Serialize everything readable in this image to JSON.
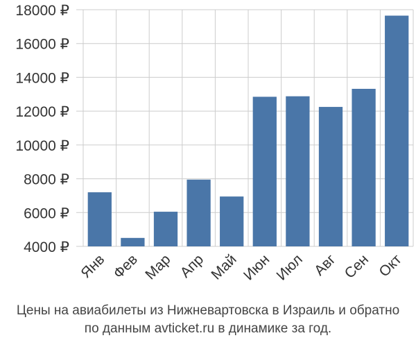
{
  "chart_data": {
    "type": "bar",
    "categories": [
      "Янв",
      "Фев",
      "Мар",
      "Апр",
      "Май",
      "Июн",
      "Июл",
      "Авг",
      "Сен",
      "Окт"
    ],
    "values": [
      7200,
      4500,
      6050,
      7950,
      6950,
      12850,
      12880,
      12250,
      13320,
      17650
    ],
    "ylim": [
      4000,
      18000
    ],
    "yticks": [
      4000,
      6000,
      8000,
      10000,
      12000,
      14000,
      16000,
      18000
    ],
    "ytick_suffix": " ₽",
    "grid": true,
    "bar_color": "#4a76a8"
  },
  "caption": {
    "line1": "Цены на авиабилеты из Нижневартовска в Израиль и обратно",
    "line2": "по данным avticket.ru в динамике за год."
  }
}
